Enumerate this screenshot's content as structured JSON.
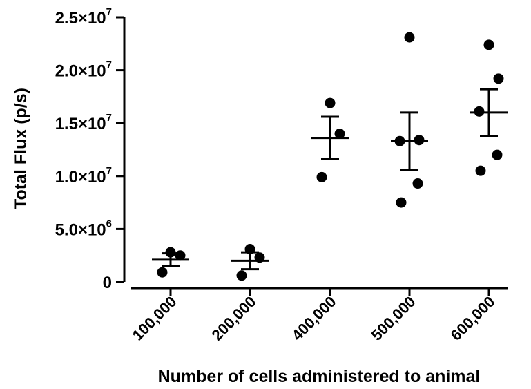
{
  "chart_data": {
    "type": "scatter",
    "subtype": "dot-plot with mean and SEM bars",
    "title": "",
    "xlabel": "Number of cells administered to animal",
    "ylabel": "Total  Flux (p/s)",
    "ylim": [
      0,
      25000000
    ],
    "y_ticks": [
      {
        "value": 0,
        "mantissa": "0",
        "exponent": ""
      },
      {
        "value": 5000000,
        "mantissa": "5.0×10",
        "exponent": "6"
      },
      {
        "value": 10000000,
        "mantissa": "1.0×10",
        "exponent": "7"
      },
      {
        "value": 15000000,
        "mantissa": "1.5×10",
        "exponent": "7"
      },
      {
        "value": 20000000,
        "mantissa": "2.0×10",
        "exponent": "7"
      },
      {
        "value": 25000000,
        "mantissa": "2.5×10",
        "exponent": "7"
      }
    ],
    "categories": [
      "100,000",
      "200,000",
      "400,000",
      "500,000",
      "600,000"
    ],
    "groups": [
      {
        "points": [
          2800000,
          2500000,
          900000
        ],
        "mean": 2100000,
        "sem_low": 1500000,
        "sem_high": 2700000
      },
      {
        "points": [
          3100000,
          2300000,
          600000
        ],
        "mean": 2000000,
        "sem_low": 1200000,
        "sem_high": 2800000
      },
      {
        "points": [
          16900000,
          14000000,
          9900000
        ],
        "mean": 13600000,
        "sem_low": 11600000,
        "sem_high": 15600000
      },
      {
        "points": [
          23100000,
          13400000,
          13300000,
          9300000,
          7500000
        ],
        "mean": 13300000,
        "sem_low": 10600000,
        "sem_high": 16000000
      },
      {
        "points": [
          22400000,
          19200000,
          16100000,
          12000000,
          10500000
        ],
        "mean": 16000000,
        "sem_low": 13800000,
        "sem_high": 18200000
      }
    ],
    "grid": false,
    "legend": "none"
  }
}
